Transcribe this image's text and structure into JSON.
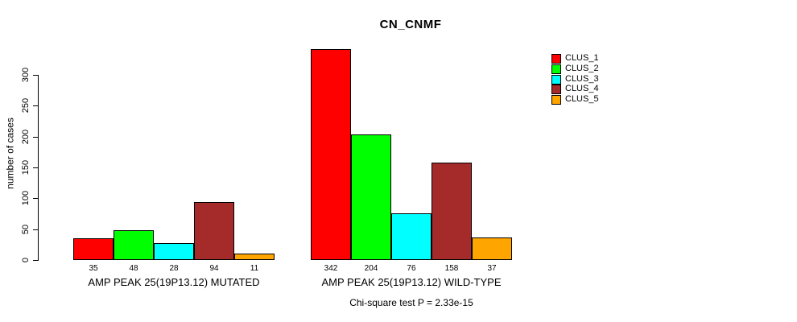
{
  "title": "CN_CNMF",
  "footer": "Chi-square test P = 2.33e-15",
  "chart_data": {
    "type": "bar",
    "title": "CN_CNMF",
    "xlabel": "",
    "ylabel": "number of cases",
    "ylim": [
      0,
      300
    ],
    "yticks": [
      0,
      50,
      100,
      150,
      200,
      250,
      300
    ],
    "grid": false,
    "legend_position": "top-right",
    "categories": [
      "AMP PEAK 25(19P13.12) MUTATED",
      "AMP PEAK 25(19P13.12) WILD-TYPE"
    ],
    "groups": [
      {
        "label": "AMP PEAK 25(19P13.12) MUTATED",
        "values": [
          35,
          48,
          28,
          94,
          11
        ]
      },
      {
        "label": "AMP PEAK 25(19P13.12) WILD-TYPE",
        "values": [
          342,
          204,
          76,
          158,
          37
        ]
      }
    ],
    "series": [
      {
        "name": "CLUS_1",
        "color": "#ff0000"
      },
      {
        "name": "CLUS_2",
        "color": "#00ff00"
      },
      {
        "name": "CLUS_3",
        "color": "#00ffff"
      },
      {
        "name": "CLUS_4",
        "color": "#a52a2a"
      },
      {
        "name": "CLUS_5",
        "color": "#ffa500"
      }
    ],
    "annotation": "Chi-square test P = 2.33e-15"
  }
}
